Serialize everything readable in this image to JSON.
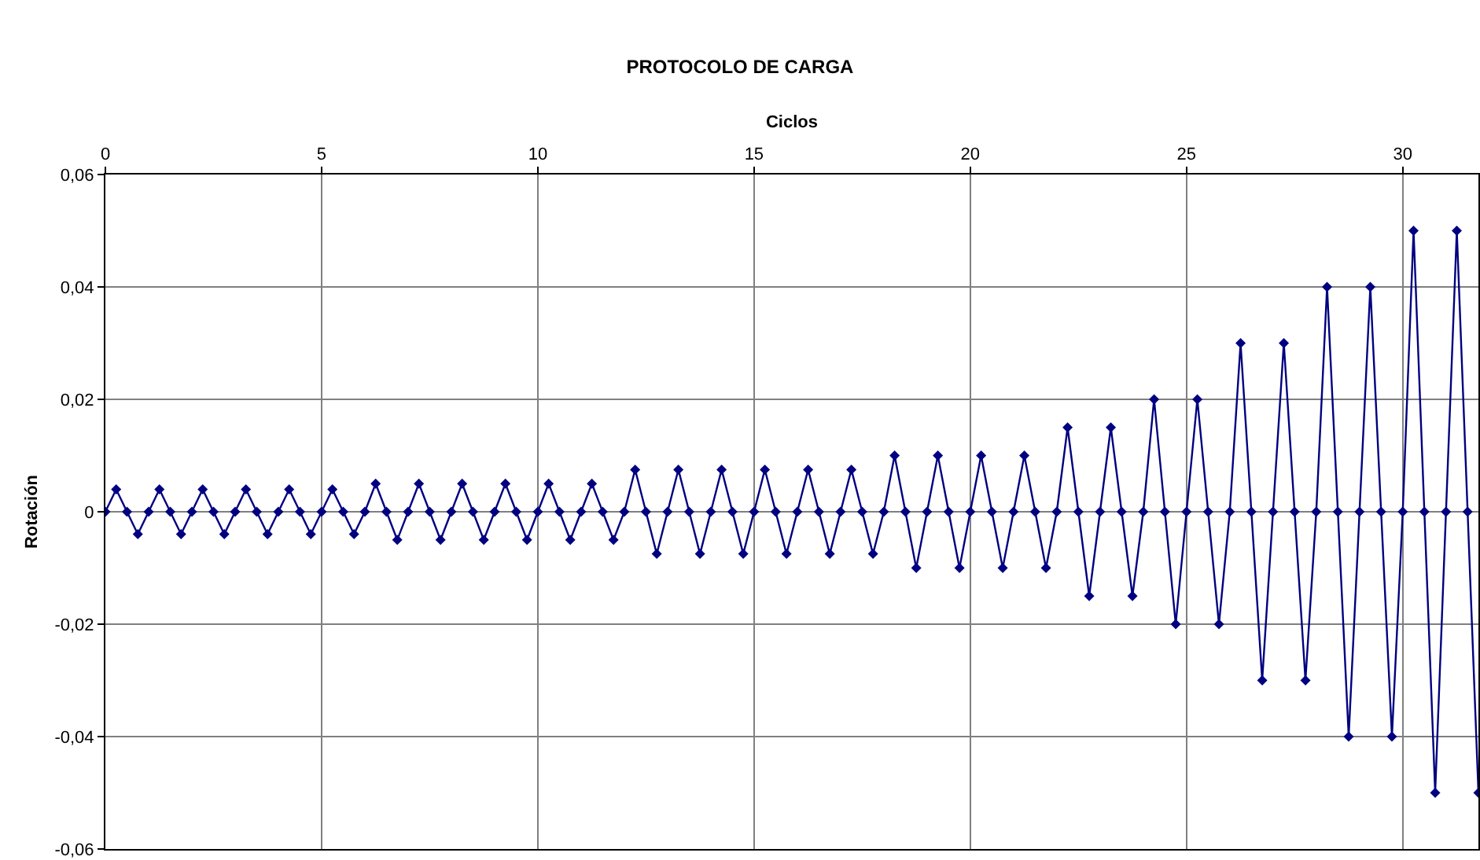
{
  "chart_data": {
    "type": "line",
    "title": "PROTOCOLO DE CARGA",
    "xlabel": "Ciclos",
    "ylabel": "Rotación",
    "x": [
      0,
      0.25,
      0.5,
      0.75,
      1,
      1.25,
      1.5,
      1.75,
      2,
      2.25,
      2.5,
      2.75,
      3,
      3.25,
      3.5,
      3.75,
      4,
      4.25,
      4.5,
      4.75,
      5,
      5.25,
      5.5,
      5.75,
      6,
      6.25,
      6.5,
      6.75,
      7,
      7.25,
      7.5,
      7.75,
      8,
      8.25,
      8.5,
      8.75,
      9,
      9.25,
      9.5,
      9.75,
      10,
      10.25,
      10.5,
      10.75,
      11,
      11.25,
      11.5,
      11.75,
      12,
      12.25,
      12.5,
      12.75,
      13,
      13.25,
      13.5,
      13.75,
      14,
      14.25,
      14.5,
      14.75,
      15,
      15.25,
      15.5,
      15.75,
      16,
      16.25,
      16.5,
      16.75,
      17,
      17.25,
      17.5,
      17.75,
      18,
      18.25,
      18.5,
      18.75,
      19,
      19.25,
      19.5,
      19.75,
      20,
      20.25,
      20.5,
      20.75,
      21,
      21.25,
      21.5,
      21.75,
      22,
      22.25,
      22.5,
      22.75,
      23,
      23.25,
      23.5,
      23.75,
      24,
      24.25,
      24.5,
      24.75,
      25,
      25.25,
      25.5,
      25.75,
      26,
      26.25,
      26.5,
      26.75,
      27,
      27.25,
      27.5,
      27.75,
      28,
      28.25,
      28.5,
      28.75,
      29,
      29.25,
      29.5,
      29.75,
      30,
      30.25,
      30.5,
      30.75,
      31,
      31.25,
      31.5,
      31.75
    ],
    "values": [
      0,
      0.004,
      0,
      -0.004,
      0,
      0.004,
      0,
      -0.004,
      0,
      0.004,
      0,
      -0.004,
      0,
      0.004,
      0,
      -0.004,
      0,
      0.004,
      0,
      -0.004,
      0,
      0.004,
      0,
      -0.004,
      0,
      0.005,
      0,
      -0.005,
      0,
      0.005,
      0,
      -0.005,
      0,
      0.005,
      0,
      -0.005,
      0,
      0.005,
      0,
      -0.005,
      0,
      0.005,
      0,
      -0.005,
      0,
      0.005,
      0,
      -0.005,
      0,
      0.0075,
      0,
      -0.0075,
      0,
      0.0075,
      0,
      -0.0075,
      0,
      0.0075,
      0,
      -0.0075,
      0,
      0.0075,
      0,
      -0.0075,
      0,
      0.0075,
      0,
      -0.0075,
      0,
      0.0075,
      0,
      -0.0075,
      0,
      0.01,
      0,
      -0.01,
      0,
      0.01,
      0,
      -0.01,
      0,
      0.01,
      0,
      -0.01,
      0,
      0.01,
      0,
      -0.01,
      0,
      0.015,
      0,
      -0.015,
      0,
      0.015,
      0,
      -0.015,
      0,
      0.02,
      0,
      -0.02,
      0,
      0.02,
      0,
      -0.02,
      0,
      0.03,
      0,
      -0.03,
      0,
      0.03,
      0,
      -0.03,
      0,
      0.04,
      0,
      -0.04,
      0,
      0.04,
      0,
      -0.04,
      0,
      0.05,
      0,
      -0.05,
      0,
      0.05,
      0,
      -0.05
    ],
    "color": "#000080",
    "marker": "diamond",
    "line_style": "solid",
    "grid": true,
    "xlim": [
      0,
      31.75
    ],
    "xticks": [
      0,
      5,
      10,
      15,
      20,
      25,
      30
    ],
    "ylim": [
      -0.06,
      0.06
    ],
    "yticks": [
      {
        "value": -0.06,
        "label": "-0,06"
      },
      {
        "value": -0.04,
        "label": "-0,04"
      },
      {
        "value": -0.02,
        "label": "-0,02"
      },
      0,
      {
        "value": 0.02,
        "label": "0,02"
      },
      {
        "value": 0.04,
        "label": "0,04"
      },
      {
        "value": 0.06,
        "label": "0,06"
      }
    ]
  }
}
